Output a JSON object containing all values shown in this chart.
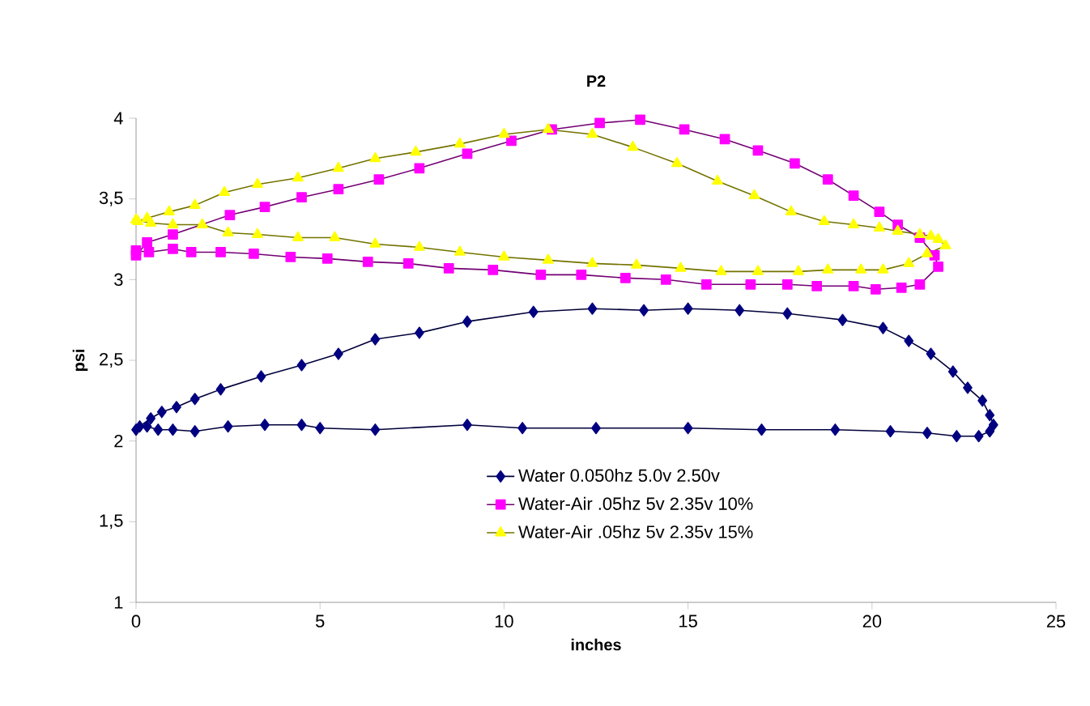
{
  "chart_data": {
    "type": "line",
    "title": "P2",
    "xlabel": "inches",
    "ylabel": "psi",
    "xlim": [
      0,
      25
    ],
    "xticks": [
      0,
      5,
      10,
      15,
      20,
      25
    ],
    "ylim": [
      1,
      4
    ],
    "yticks": [
      1,
      {
        "value": 1.5,
        "label": "1,5"
      },
      2,
      {
        "value": 2.5,
        "label": "2,5"
      },
      3,
      {
        "value": 3.5,
        "label": "3,5"
      },
      4
    ],
    "legend": "bottom right",
    "series": [
      {
        "name": "Water 0.050hz 5.0v 2.50v",
        "color": "#000080",
        "marker": "diamond",
        "x": [
          0,
          0.3,
          0.6,
          1,
          1.6,
          2.5,
          3.5,
          4.5,
          5,
          6.5,
          9,
          10.5,
          12.5,
          15,
          17,
          19,
          20.5,
          21.5,
          22.3,
          22.9,
          23.2,
          23.3,
          23.2,
          23,
          22.6,
          22.2,
          21.6,
          21,
          20.3,
          19.2,
          17.7,
          16.4,
          15,
          13.8,
          12.4,
          10.8,
          9,
          7.7,
          6.5,
          5.5,
          4.5,
          3.4,
          2.3,
          1.6,
          1.1,
          0.7,
          0.4,
          0.1
        ],
        "values": [
          2.07,
          2.09,
          2.07,
          2.07,
          2.06,
          2.09,
          2.1,
          2.1,
          2.08,
          2.07,
          2.1,
          2.08,
          2.08,
          2.08,
          2.07,
          2.07,
          2.06,
          2.05,
          2.03,
          2.03,
          2.06,
          2.1,
          2.16,
          2.25,
          2.33,
          2.43,
          2.54,
          2.62,
          2.7,
          2.75,
          2.79,
          2.81,
          2.82,
          2.81,
          2.82,
          2.8,
          2.74,
          2.67,
          2.63,
          2.54,
          2.47,
          2.4,
          2.32,
          2.26,
          2.21,
          2.18,
          2.14,
          2.09
        ]
      },
      {
        "name": "Water-Air .05hz 5v 2.35v 10%",
        "color": "#ff00ff",
        "marker": "square",
        "x": [
          0,
          0.3,
          1,
          2.55,
          3.5,
          4.5,
          5.5,
          6.6,
          7.7,
          9,
          10.2,
          11.3,
          12.6,
          13.7,
          14.9,
          16,
          16.9,
          17.9,
          18.8,
          19.5,
          20.2,
          20.7,
          21.3,
          21.7,
          21.8,
          21.3,
          20.8,
          20.1,
          19.5,
          18.5,
          17.7,
          16.7,
          15.5,
          14.4,
          13.3,
          12.1,
          11,
          9.7,
          8.5,
          7.4,
          6.3,
          5.2,
          4.2,
          3.2,
          2.3,
          1.5,
          1,
          0.35,
          0
        ],
        "values": [
          3.15,
          3.23,
          3.28,
          3.4,
          3.45,
          3.51,
          3.56,
          3.62,
          3.69,
          3.78,
          3.86,
          3.93,
          3.97,
          3.99,
          3.93,
          3.87,
          3.8,
          3.72,
          3.62,
          3.52,
          3.42,
          3.34,
          3.26,
          3.15,
          3.08,
          2.97,
          2.95,
          2.94,
          2.96,
          2.96,
          2.97,
          2.97,
          2.97,
          3.0,
          3.01,
          3.03,
          3.03,
          3.06,
          3.07,
          3.1,
          3.11,
          3.13,
          3.14,
          3.16,
          3.17,
          3.17,
          3.19,
          3.17,
          3.18
        ]
      },
      {
        "name": "Water-Air .05hz 5v 2.35v 15%",
        "color": "#ffff00",
        "marker": "triangle",
        "x": [
          0.05,
          0.3,
          0.9,
          1.6,
          2.4,
          3.3,
          4.4,
          5.5,
          6.5,
          7.6,
          8.8,
          10,
          11.2,
          12.4,
          13.5,
          14.7,
          15.8,
          16.8,
          17.8,
          18.7,
          19.5,
          20.2,
          20.7,
          21.3,
          21.6,
          21.8,
          22,
          21.5,
          21,
          20.3,
          19.7,
          18.8,
          18,
          16.9,
          15.9,
          14.8,
          13.6,
          12.4,
          11.2,
          10,
          8.8,
          7.7,
          6.5,
          5.4,
          4.4,
          3.3,
          2.5,
          1.8,
          1,
          0.4,
          0
        ],
        "values": [
          3.36,
          3.38,
          3.42,
          3.46,
          3.54,
          3.59,
          3.63,
          3.69,
          3.75,
          3.79,
          3.84,
          3.9,
          3.93,
          3.9,
          3.82,
          3.72,
          3.61,
          3.52,
          3.42,
          3.36,
          3.34,
          3.32,
          3.3,
          3.28,
          3.27,
          3.25,
          3.21,
          3.16,
          3.1,
          3.06,
          3.06,
          3.06,
          3.05,
          3.05,
          3.05,
          3.07,
          3.09,
          3.1,
          3.12,
          3.14,
          3.17,
          3.2,
          3.22,
          3.26,
          3.26,
          3.28,
          3.29,
          3.34,
          3.34,
          3.35,
          3.37
        ]
      }
    ]
  }
}
